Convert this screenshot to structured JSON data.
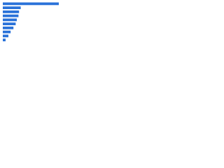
{
  "chart_data": {
    "type": "bar",
    "orientation": "horizontal",
    "categories": [
      null,
      null,
      null,
      null,
      null,
      null,
      null,
      null,
      null,
      null
    ],
    "values": [
      100,
      32,
      29,
      28,
      25,
      23,
      19,
      14,
      10,
      5
    ],
    "color": "#2a72d9",
    "xlim": [
      0,
      100
    ]
  }
}
